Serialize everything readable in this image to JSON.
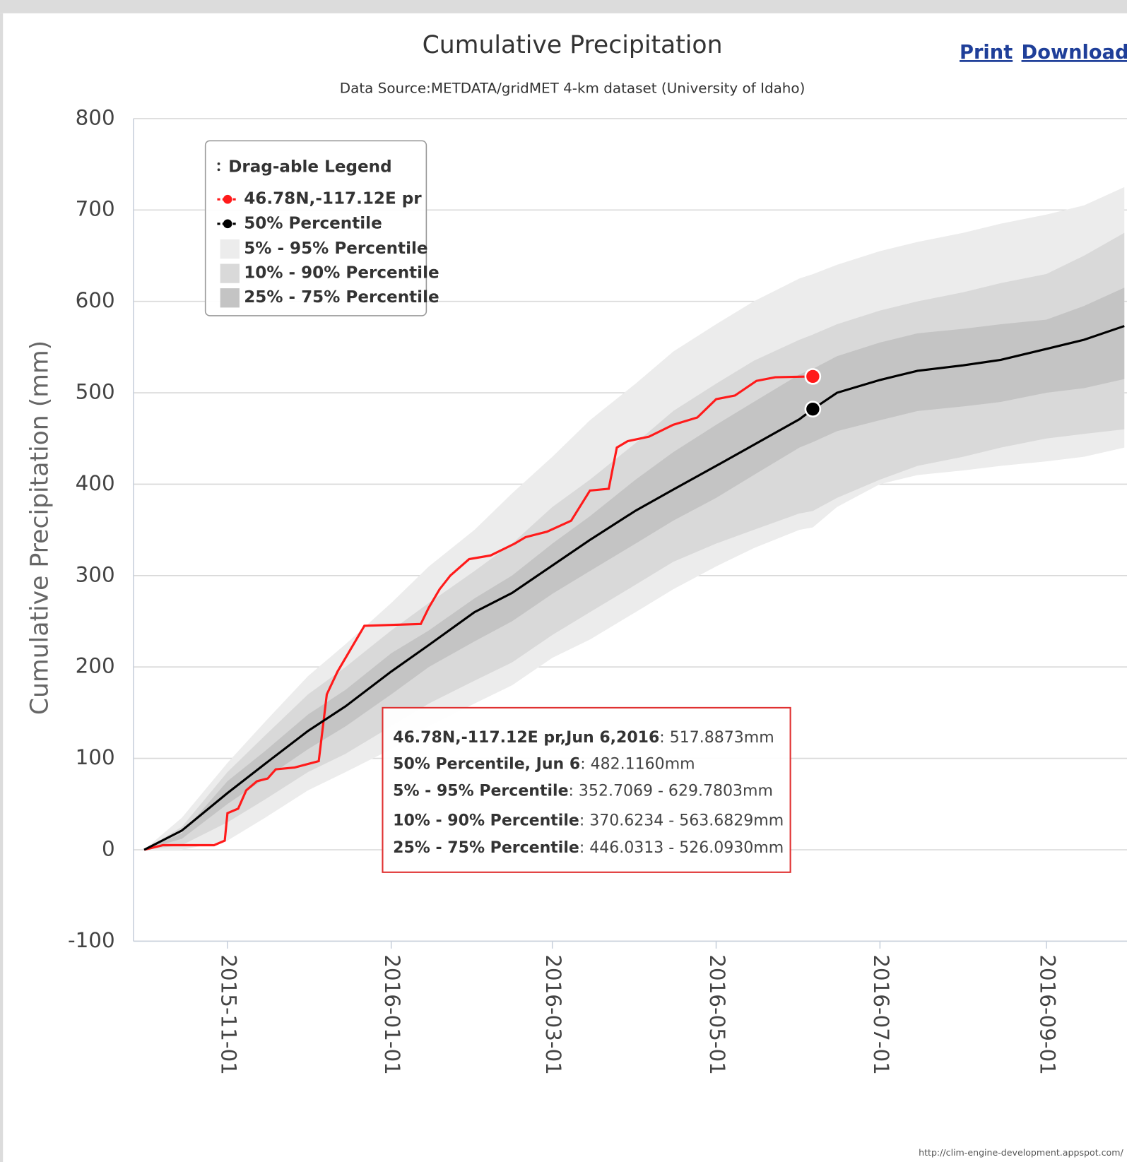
{
  "chart_data": {
    "type": "line",
    "title": "Cumulative Precipitation",
    "subtitle": "Data Source:METDATA/gridMET 4-km dataset (University of Idaho)",
    "y_label": "Cumulative Precipitation (mm)",
    "buttons": [
      "Print",
      "Download"
    ],
    "credit": "http://clim-engine-development.appspot.com/",
    "legend_title": "Drag-able Legend",
    "legend_position": "upper left",
    "grid": true,
    "ylim": [
      -100,
      800
    ],
    "yticks": [
      -100,
      0,
      100,
      200,
      300,
      400,
      500,
      600,
      700,
      800
    ],
    "xlim": [
      "2015-09-27",
      "2016-10-01"
    ],
    "xticks": [
      "2015-11-01",
      "2016-01-01",
      "2016-03-01",
      "2016-05-01",
      "2016-07-01",
      "2016-09-01"
    ],
    "x": [
      "2015-10-01",
      "2015-10-15",
      "2015-11-01",
      "2015-11-15",
      "2015-12-01",
      "2015-12-15",
      "2016-01-01",
      "2016-01-15",
      "2016-02-01",
      "2016-02-15",
      "2016-03-01",
      "2016-03-15",
      "2016-04-01",
      "2016-04-15",
      "2016-05-01",
      "2016-05-15",
      "2016-06-01",
      "2016-06-06",
      "2016-06-15",
      "2016-07-01",
      "2016-07-15",
      "2016-08-01",
      "2016-08-15",
      "2016-09-01",
      "2016-09-15",
      "2016-09-30"
    ],
    "series": [
      {
        "name": "46.78N,-117.12E pr",
        "type": "line",
        "color": "#ff1a1a",
        "x": [
          "2015-10-01",
          "2015-10-08",
          "2015-10-27",
          "2015-10-31",
          "2015-11-01",
          "2015-11-05",
          "2015-11-08",
          "2015-11-12",
          "2015-11-16",
          "2015-11-19",
          "2015-11-26",
          "2015-12-05",
          "2015-12-08",
          "2015-12-12",
          "2015-12-16",
          "2015-12-22",
          "2016-01-12",
          "2016-01-15",
          "2016-01-19",
          "2016-01-23",
          "2016-01-30",
          "2016-02-07",
          "2016-02-16",
          "2016-02-20",
          "2016-02-28",
          "2016-03-08",
          "2016-03-15",
          "2016-03-22",
          "2016-03-25",
          "2016-03-29",
          "2016-04-06",
          "2016-04-15",
          "2016-04-24",
          "2016-05-01",
          "2016-05-08",
          "2016-05-16",
          "2016-05-23",
          "2016-06-06"
        ],
        "values": [
          0,
          5,
          5,
          10,
          40,
          45,
          65,
          75,
          78,
          88,
          90,
          97,
          170,
          195,
          215,
          245,
          247,
          265,
          285,
          300,
          318,
          322,
          335,
          342,
          348,
          360,
          393,
          395,
          440,
          447,
          452,
          465,
          473,
          493,
          497,
          513,
          517,
          517.8873
        ]
      },
      {
        "name": "50% Percentile",
        "type": "line",
        "color": "#000000",
        "values": [
          0,
          21,
          62,
          94,
          130,
          157,
          195,
          224,
          260,
          281,
          311,
          339,
          371,
          394,
          420,
          443,
          471,
          482.116,
          500,
          514,
          524,
          530,
          536,
          548,
          558,
          573
        ]
      },
      {
        "name": "5% - 95% Percentile",
        "type": "band",
        "color": "#ececec",
        "low": [
          0,
          0,
          10,
          35,
          65,
          85,
          110,
          135,
          160,
          180,
          210,
          230,
          260,
          285,
          310,
          330,
          350,
          352.7069,
          375,
          400,
          410,
          415,
          420,
          425,
          430,
          440
        ],
        "high": [
          0,
          35,
          95,
          140,
          190,
          225,
          270,
          310,
          350,
          390,
          430,
          470,
          510,
          545,
          575,
          600,
          625,
          629.7803,
          640,
          655,
          665,
          675,
          685,
          695,
          705,
          725
        ]
      },
      {
        "name": "10% - 90% Percentile",
        "type": "band",
        "color": "#d9d9d9",
        "low": [
          0,
          5,
          30,
          55,
          85,
          105,
          135,
          160,
          185,
          205,
          235,
          260,
          290,
          315,
          335,
          350,
          368,
          370.6234,
          385,
          405,
          420,
          430,
          440,
          450,
          455,
          460
        ],
        "high": [
          0,
          25,
          85,
          125,
          170,
          200,
          240,
          270,
          305,
          335,
          375,
          405,
          445,
          480,
          510,
          535,
          558,
          563.6829,
          575,
          590,
          600,
          610,
          620,
          630,
          650,
          675
        ]
      },
      {
        "name": "25% - 75% Percentile",
        "type": "band",
        "color": "#c4c4c4",
        "low": [
          0,
          12,
          50,
          78,
          110,
          135,
          170,
          200,
          228,
          250,
          280,
          305,
          335,
          360,
          385,
          410,
          440,
          446.0313,
          458,
          470,
          480,
          485,
          490,
          500,
          505,
          515
        ],
        "high": [
          0,
          18,
          75,
          108,
          148,
          175,
          215,
          240,
          275,
          300,
          335,
          365,
          405,
          435,
          465,
          490,
          520,
          526.093,
          540,
          555,
          565,
          570,
          575,
          580,
          595,
          615
        ]
      }
    ],
    "tooltip": [
      {
        "label": "46.78N,-117.12E pr,Jun 6,2016",
        "value": ": 517.8873mm"
      },
      {
        "label": "50% Percentile, Jun 6",
        "value": ": 482.1160mm"
      },
      {
        "label": "5% - 95% Percentile",
        "value": ": 352.7069 - 629.7803mm"
      },
      {
        "label": "10% - 90% Percentile",
        "value": ": 370.6234 - 563.6829mm"
      },
      {
        "label": "25% - 75% Percentile",
        "value": ": 446.0313 - 526.0930mm"
      }
    ]
  }
}
